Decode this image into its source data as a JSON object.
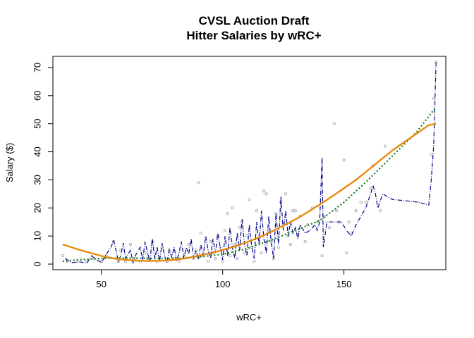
{
  "chart_data": {
    "type": "scatter",
    "title": "CVSL Auction Draft",
    "subtitle": "Hitter Salaries by wRC+",
    "xlabel": "wRC+",
    "ylabel": "Salary ($)",
    "xlim": [
      30,
      192
    ],
    "ylim": [
      -2,
      74
    ],
    "x_ticks": [
      50,
      100,
      150
    ],
    "y_ticks": [
      0,
      10,
      20,
      30,
      40,
      50,
      60,
      70
    ],
    "grid": false,
    "legend": "none",
    "colors": {
      "points": "#9a9a9a",
      "connected_line": "#00008b",
      "quadratic_fit": "#e8890c",
      "smooth_fit": "#1a7a1a"
    },
    "points": [
      [
        34,
        3
      ],
      [
        36,
        1
      ],
      [
        40,
        1
      ],
      [
        44,
        1
      ],
      [
        47,
        2
      ],
      [
        50,
        1
      ],
      [
        52,
        3
      ],
      [
        55,
        8
      ],
      [
        57,
        1
      ],
      [
        58,
        5
      ],
      [
        60,
        1
      ],
      [
        62,
        7
      ],
      [
        64,
        2
      ],
      [
        66,
        1
      ],
      [
        68,
        4
      ],
      [
        69,
        2
      ],
      [
        71,
        8
      ],
      [
        73,
        1
      ],
      [
        75,
        6
      ],
      [
        77,
        1
      ],
      [
        78,
        5
      ],
      [
        80,
        2
      ],
      [
        82,
        1
      ],
      [
        84,
        3
      ],
      [
        86,
        7
      ],
      [
        88,
        2
      ],
      [
        89,
        5
      ],
      [
        90,
        29
      ],
      [
        91,
        11
      ],
      [
        92,
        3
      ],
      [
        94,
        1
      ],
      [
        95,
        8
      ],
      [
        96,
        4
      ],
      [
        97,
        2
      ],
      [
        98,
        10
      ],
      [
        99,
        6
      ],
      [
        100,
        1
      ],
      [
        101,
        12
      ],
      [
        102,
        18
      ],
      [
        103,
        3
      ],
      [
        104,
        20
      ],
      [
        105,
        7
      ],
      [
        106,
        2
      ],
      [
        107,
        13
      ],
      [
        108,
        15
      ],
      [
        109,
        4
      ],
      [
        110,
        10
      ],
      [
        111,
        23
      ],
      [
        112,
        6
      ],
      [
        113,
        1
      ],
      [
        114,
        19
      ],
      [
        115,
        9
      ],
      [
        116,
        4
      ],
      [
        117,
        26
      ],
      [
        118,
        25
      ],
      [
        119,
        12
      ],
      [
        120,
        8
      ],
      [
        121,
        2
      ],
      [
        122,
        18
      ],
      [
        123,
        6
      ],
      [
        124,
        22
      ],
      [
        125,
        14
      ],
      [
        126,
        25
      ],
      [
        127,
        10
      ],
      [
        128,
        7
      ],
      [
        129,
        19
      ],
      [
        130,
        19
      ],
      [
        131,
        11
      ],
      [
        132,
        17
      ],
      [
        134,
        8
      ],
      [
        135,
        14
      ],
      [
        137,
        20
      ],
      [
        139,
        15
      ],
      [
        141,
        3
      ],
      [
        142,
        17
      ],
      [
        144,
        13
      ],
      [
        146,
        50
      ],
      [
        147,
        19
      ],
      [
        148,
        15
      ],
      [
        150,
        37
      ],
      [
        151,
        4
      ],
      [
        152,
        15
      ],
      [
        153,
        11
      ],
      [
        155,
        19
      ],
      [
        157,
        22
      ],
      [
        159,
        22
      ],
      [
        161,
        27
      ],
      [
        162,
        35
      ],
      [
        165,
        19
      ],
      [
        167,
        42
      ],
      [
        186,
        39
      ],
      [
        187,
        59
      ],
      [
        188,
        72
      ]
    ],
    "connected_series": [
      [
        35,
        2
      ],
      [
        38,
        0.5
      ],
      [
        41,
        0.8
      ],
      [
        44,
        0.3
      ],
      [
        46,
        3
      ],
      [
        48,
        1.5
      ],
      [
        50,
        0.5
      ],
      [
        52,
        3.5
      ],
      [
        54,
        6
      ],
      [
        55,
        8.5
      ],
      [
        56,
        5
      ],
      [
        57,
        1
      ],
      [
        58,
        3
      ],
      [
        59,
        7.5
      ],
      [
        60,
        2
      ],
      [
        62,
        5
      ],
      [
        63,
        0.5
      ],
      [
        64,
        3
      ],
      [
        66,
        6
      ],
      [
        67,
        1.5
      ],
      [
        68,
        8
      ],
      [
        69,
        4
      ],
      [
        70,
        1
      ],
      [
        71,
        9
      ],
      [
        72,
        2
      ],
      [
        73,
        6
      ],
      [
        74,
        1
      ],
      [
        75,
        7.5
      ],
      [
        76,
        3
      ],
      [
        77,
        0.5
      ],
      [
        78,
        5
      ],
      [
        79,
        2.5
      ],
      [
        80,
        6
      ],
      [
        81,
        1
      ],
      [
        82,
        4
      ],
      [
        83,
        8
      ],
      [
        84,
        2
      ],
      [
        85,
        6
      ],
      [
        86,
        3.5
      ],
      [
        87,
        9
      ],
      [
        88,
        2
      ],
      [
        89,
        5
      ],
      [
        90,
        1.5
      ],
      [
        91,
        7
      ],
      [
        92,
        3
      ],
      [
        93,
        10
      ],
      [
        94,
        5
      ],
      [
        95,
        2
      ],
      [
        96,
        9
      ],
      [
        97,
        4
      ],
      [
        98,
        11
      ],
      [
        99,
        6
      ],
      [
        100,
        1.5
      ],
      [
        101,
        10
      ],
      [
        102,
        3
      ],
      [
        103,
        13
      ],
      [
        104,
        6
      ],
      [
        105,
        2
      ],
      [
        106,
        11
      ],
      [
        107,
        5
      ],
      [
        108,
        16
      ],
      [
        109,
        7
      ],
      [
        110,
        3
      ],
      [
        111,
        14
      ],
      [
        112,
        6
      ],
      [
        113,
        2
      ],
      [
        114,
        15
      ],
      [
        115,
        7
      ],
      [
        116,
        19
      ],
      [
        117,
        9
      ],
      [
        118,
        4
      ],
      [
        119,
        17
      ],
      [
        120,
        8
      ],
      [
        121,
        2
      ],
      [
        122,
        18
      ],
      [
        123,
        7
      ],
      [
        124,
        24
      ],
      [
        125,
        12
      ],
      [
        126,
        19
      ],
      [
        127,
        10
      ],
      [
        128,
        15
      ],
      [
        129,
        11
      ],
      [
        130,
        13
      ],
      [
        131,
        9
      ],
      [
        132,
        14
      ],
      [
        134,
        11
      ],
      [
        136,
        12
      ],
      [
        138,
        14
      ],
      [
        139,
        12
      ],
      [
        140,
        15
      ],
      [
        141,
        38
      ],
      [
        141.5,
        6
      ],
      [
        143,
        15
      ],
      [
        146,
        15
      ],
      [
        149,
        15
      ],
      [
        151,
        12
      ],
      [
        153,
        10
      ],
      [
        155,
        14
      ],
      [
        157,
        17
      ],
      [
        159,
        20
      ],
      [
        161,
        25
      ],
      [
        162,
        28
      ],
      [
        163,
        25
      ],
      [
        164,
        20
      ],
      [
        166,
        25
      ],
      [
        170,
        23
      ],
      [
        176,
        22.5
      ],
      [
        181,
        22
      ],
      [
        185,
        21
      ],
      [
        186,
        30
      ],
      [
        187,
        42
      ],
      [
        188,
        72
      ]
    ],
    "quadratic_fit": [
      [
        34,
        7
      ],
      [
        40,
        5.3
      ],
      [
        45,
        4.1
      ],
      [
        50,
        2.9
      ],
      [
        55,
        2.0
      ],
      [
        60,
        1.5
      ],
      [
        65,
        1.2
      ],
      [
        70,
        1.1
      ],
      [
        75,
        1.2
      ],
      [
        80,
        1.5
      ],
      [
        85,
        2.1
      ],
      [
        90,
        3.0
      ],
      [
        95,
        3.9
      ],
      [
        100,
        5.0
      ],
      [
        105,
        6.3
      ],
      [
        110,
        7.8
      ],
      [
        115,
        9.5
      ],
      [
        120,
        11.5
      ],
      [
        125,
        13.7
      ],
      [
        130,
        15.9
      ],
      [
        135,
        18.5
      ],
      [
        140,
        21.2
      ],
      [
        145,
        24.0
      ],
      [
        150,
        27.0
      ],
      [
        155,
        30.0
      ],
      [
        160,
        33.5
      ],
      [
        165,
        37.0
      ],
      [
        170,
        40.5
      ],
      [
        175,
        43.5
      ],
      [
        180,
        46.5
      ],
      [
        185,
        49.5
      ],
      [
        188,
        50
      ]
    ],
    "smooth_fit": [
      [
        34,
        1
      ],
      [
        40,
        1.5
      ],
      [
        50,
        2
      ],
      [
        60,
        2.2
      ],
      [
        70,
        2
      ],
      [
        80,
        2
      ],
      [
        90,
        2.5
      ],
      [
        100,
        3.5
      ],
      [
        110,
        5.5
      ],
      [
        120,
        8.5
      ],
      [
        130,
        12
      ],
      [
        140,
        15.5
      ],
      [
        150,
        22
      ],
      [
        160,
        30
      ],
      [
        170,
        38.5
      ],
      [
        180,
        47
      ],
      [
        188,
        56
      ]
    ]
  }
}
